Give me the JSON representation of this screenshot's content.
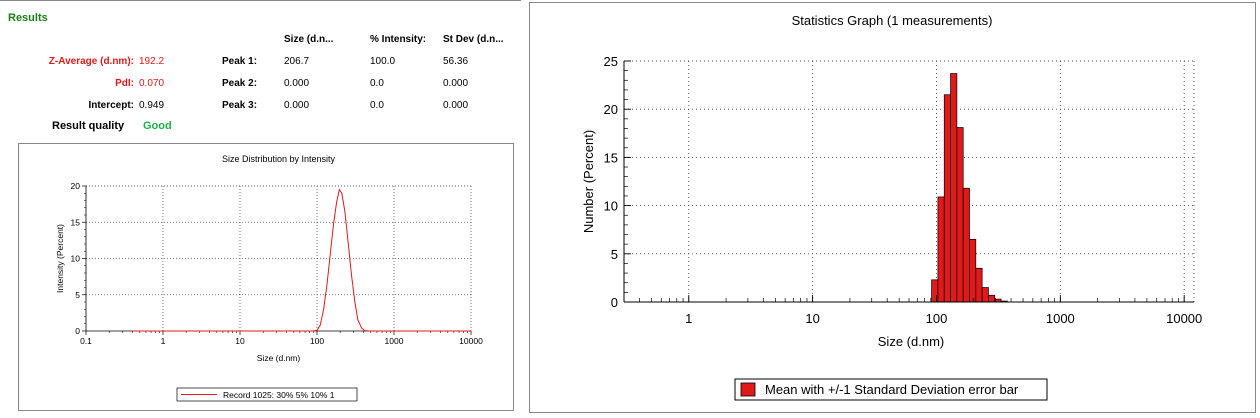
{
  "results": {
    "title": "Results",
    "headers": {
      "size": "Size (d.n...",
      "intensity": "% Intensity:",
      "stdev": "St Dev (d.n..."
    },
    "z_average": {
      "label": "Z-Average (d.nm):",
      "value": "192.2"
    },
    "pdi": {
      "label": "PdI:",
      "value": "0.070"
    },
    "intercept": {
      "label": "Intercept:",
      "value": "0.949"
    },
    "peaks": [
      {
        "label": "Peak 1:",
        "size": "206.7",
        "intensity": "100.0",
        "stdev": "56.36"
      },
      {
        "label": "Peak 2:",
        "size": "0.000",
        "intensity": "0.0",
        "stdev": "0.000"
      },
      {
        "label": "Peak 3:",
        "size": "0.000",
        "intensity": "0.0",
        "stdev": "0.000"
      }
    ],
    "result_quality": {
      "label": "Result quality",
      "value": "Good"
    }
  },
  "chart_data": [
    {
      "type": "line",
      "title": "Size Distribution by Intensity",
      "xlabel": "Size (d.nm)",
      "ylabel": "Intensity (Percent)",
      "xscale": "log",
      "xlim": [
        0.1,
        10000
      ],
      "ylim": [
        0,
        20
      ],
      "xticks": [
        "0.1",
        "1",
        "10",
        "100",
        "1000",
        "10000"
      ],
      "yticks": [
        "0",
        "5",
        "10",
        "15",
        "20"
      ],
      "grid": true,
      "legend": "bottom",
      "series": [
        {
          "name": "Record 1025: 30% 5% 10% 1",
          "color": "#e0191b",
          "x": [
            0.4,
            1,
            10,
            50,
            90,
            100,
            110,
            122,
            135,
            150,
            165,
            180,
            195,
            210,
            230,
            255,
            280,
            310,
            340,
            380,
            420,
            470,
            10000
          ],
          "y": [
            0,
            0,
            0,
            0,
            0,
            0.1,
            0.8,
            3.0,
            6.5,
            11.0,
            15.0,
            17.8,
            19.5,
            19.0,
            16.5,
            12.0,
            7.8,
            4.0,
            1.5,
            0.4,
            0.05,
            0,
            0
          ]
        }
      ]
    },
    {
      "type": "bar",
      "title": "Statistics Graph (1 measurements)",
      "xlabel": "Size (d.nm)",
      "ylabel": "Number (Percent)",
      "xscale": "log",
      "xlim": [
        0.3,
        12000
      ],
      "ylim": [
        0,
        25
      ],
      "xticks": [
        "1",
        "10",
        "100",
        "1000",
        "10000"
      ],
      "yticks": [
        "0",
        "5",
        "10",
        "15",
        "20",
        "25"
      ],
      "grid": true,
      "legend": "bottom",
      "legend_label": "Mean with +/-1 Standard Deviation error bar",
      "color": "#e0191b",
      "bin_edges": [
        91.3,
        102.7,
        115.5,
        129.9,
        146.1,
        164.3,
        184.8,
        207.8,
        233.7,
        262.8,
        295.5,
        332.3,
        373.7,
        420.2
      ],
      "values": [
        2.3,
        10.9,
        21.5,
        23.7,
        18.1,
        11.8,
        6.5,
        3.5,
        1.5,
        0.7,
        0.3,
        0.1,
        0.0
      ]
    }
  ]
}
